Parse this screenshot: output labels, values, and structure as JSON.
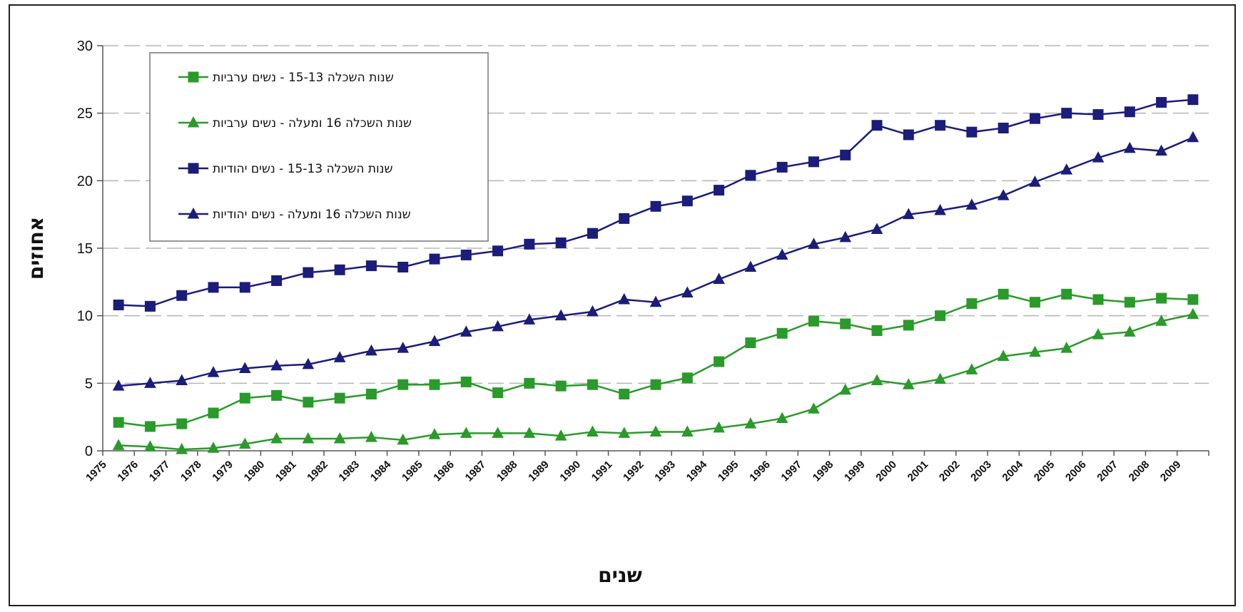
{
  "chart_data": {
    "type": "line",
    "title": "",
    "xlabel": "שנים",
    "ylabel": "אחוזים",
    "ylim": [
      0,
      30
    ],
    "yticks": [
      0,
      5,
      10,
      15,
      20,
      25,
      30
    ],
    "grid": "horizontal-dashed",
    "legend_position": "top-left",
    "categories": [
      "1975",
      "1976",
      "1977",
      "1978",
      "1979",
      "1980",
      "1981",
      "1982",
      "1983",
      "1984",
      "1985",
      "1986",
      "1987",
      "1988",
      "1989",
      "1990",
      "1991",
      "1992",
      "1993",
      "1994",
      "1995",
      "1996",
      "1997",
      "1998",
      "1999",
      "2000",
      "2001",
      "2002",
      "2003",
      "2004",
      "2005",
      "2006",
      "2007",
      "2008",
      "2009"
    ],
    "series": [
      {
        "name": "שנות השכלה 15-13 - נשים ערביות",
        "color": "#2a9a2a",
        "marker": "square",
        "values": [
          2.1,
          1.8,
          2.0,
          2.8,
          3.9,
          4.1,
          3.6,
          3.9,
          4.2,
          4.9,
          4.9,
          5.1,
          4.3,
          5.0,
          4.8,
          4.9,
          4.2,
          4.9,
          5.4,
          6.6,
          8.0,
          8.7,
          9.6,
          9.4,
          8.9,
          9.3,
          10.0,
          10.9,
          11.6,
          11.0,
          11.6,
          11.2,
          11.0,
          11.3,
          11.2
        ]
      },
      {
        "name": "שנות השכלה 16 ומעלה - נשים ערביות",
        "color": "#2a9a2a",
        "marker": "triangle",
        "values": [
          0.4,
          0.3,
          0.1,
          0.2,
          0.5,
          0.9,
          0.9,
          0.9,
          1.0,
          0.8,
          1.2,
          1.3,
          1.3,
          1.3,
          1.1,
          1.4,
          1.3,
          1.4,
          1.4,
          1.7,
          2.0,
          2.4,
          3.1,
          4.5,
          5.2,
          4.9,
          5.3,
          6.0,
          7.0,
          7.3,
          7.6,
          8.6,
          8.8,
          9.6,
          10.1
        ]
      },
      {
        "name": "שנות השכלה 15-13 - נשים יהודיות",
        "color": "#1c1c7a",
        "marker": "square",
        "values": [
          10.8,
          10.7,
          11.5,
          12.1,
          12.1,
          12.6,
          13.2,
          13.4,
          13.7,
          13.6,
          14.2,
          14.5,
          14.8,
          15.3,
          15.4,
          16.1,
          17.2,
          18.1,
          18.5,
          19.3,
          20.4,
          21.0,
          21.4,
          21.9,
          24.1,
          23.4,
          24.1,
          23.6,
          23.9,
          24.6,
          25.0,
          24.9,
          25.1,
          25.8,
          26.0
        ]
      },
      {
        "name": "שנות השכלה 16 ומעלה - נשים יהודיות",
        "color": "#1c1c7a",
        "marker": "triangle",
        "values": [
          4.8,
          5.0,
          5.2,
          5.8,
          6.1,
          6.3,
          6.4,
          6.9,
          7.4,
          7.6,
          8.1,
          8.8,
          9.2,
          9.7,
          10.0,
          10.3,
          11.2,
          11.0,
          11.7,
          12.7,
          13.6,
          14.5,
          15.3,
          15.8,
          16.4,
          17.5,
          17.8,
          18.2,
          18.9,
          19.9,
          20.8,
          21.7,
          22.4,
          22.2,
          23.2
        ]
      }
    ]
  }
}
